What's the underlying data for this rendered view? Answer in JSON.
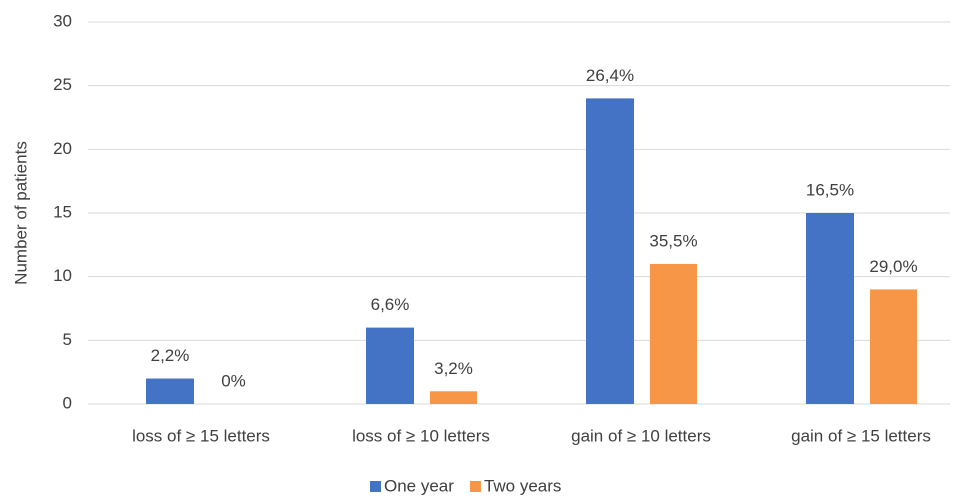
{
  "chart_data": {
    "type": "bar",
    "y_axis_title": "Number of patients",
    "categories": [
      "loss of ≥ 15 letters",
      "loss of ≥ 10 letters",
      "gain of ≥ 10 letters",
      "gain of ≥ 15 letters"
    ],
    "series": [
      {
        "name": "One year",
        "color": "#4472c4",
        "values": [
          2,
          6,
          24,
          15
        ],
        "percent_labels": [
          "2,2%",
          "6,6%",
          "26,4%",
          "16,5%"
        ]
      },
      {
        "name": "Two years",
        "color": "#f79646",
        "values": [
          0,
          1,
          11,
          9
        ],
        "percent_labels": [
          "0%",
          "3,2%",
          "35,5%",
          "29,0%"
        ]
      }
    ],
    "ylim": [
      0,
      30
    ],
    "yticks": [
      0,
      5,
      10,
      15,
      20,
      25,
      30
    ],
    "grid": true,
    "legend": "bottom"
  }
}
